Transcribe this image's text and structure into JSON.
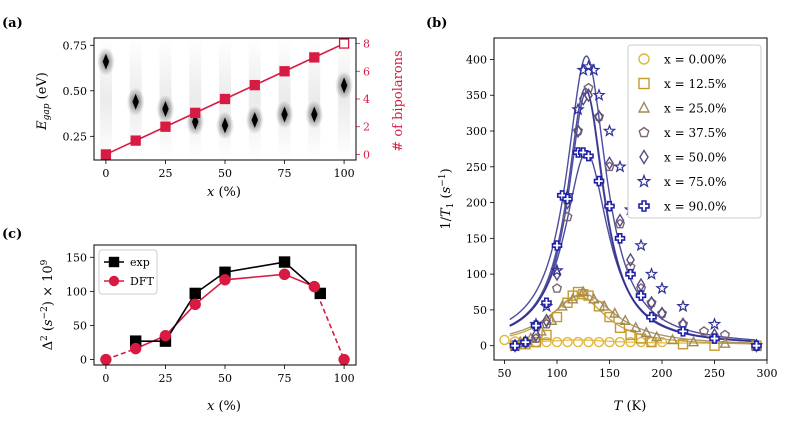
{
  "panels": {
    "a": "(a)",
    "b": "(b)",
    "c": "(c)"
  },
  "colors": {
    "red": "#d81b43",
    "black": "#000000",
    "line_b": "#2e2d8e"
  },
  "chart_data": [
    {
      "id": "a",
      "type": "scatter",
      "xlabel": "x (%)",
      "ylabel": "E_gap (eV)",
      "y2label": "# of bipolarons",
      "xlim": [
        -5,
        105
      ],
      "ylim": [
        0.12,
        0.79
      ],
      "y2lim": [
        -0.4,
        8.4
      ],
      "xticks": [
        0,
        25,
        50,
        75,
        100
      ],
      "yticks": [
        0.25,
        0.5,
        0.75
      ],
      "y2ticks": [
        0,
        2,
        4,
        6,
        8
      ],
      "gap_points": {
        "x": [
          0,
          12.5,
          25,
          37.5,
          50,
          62.5,
          75,
          87.5,
          100
        ],
        "y": [
          0.66,
          0.44,
          0.4,
          0.33,
          0.31,
          0.34,
          0.37,
          0.37,
          0.53
        ]
      },
      "bipolarons": {
        "x": [
          0,
          12.5,
          25,
          37.5,
          50,
          62.5,
          75,
          87.5,
          100
        ],
        "y": [
          0,
          1,
          2,
          3,
          4,
          5,
          6,
          7,
          8
        ]
      }
    },
    {
      "id": "b",
      "type": "scatter",
      "xlabel": "T (K)",
      "ylabel": "1/T_1 (s^-1)",
      "xlim": [
        40,
        300
      ],
      "ylim": [
        -20,
        430
      ],
      "xticks": [
        50,
        100,
        150,
        200,
        250,
        300
      ],
      "yticks": [
        0,
        50,
        100,
        150,
        200,
        250,
        300,
        350,
        400
      ],
      "legend": "top-right",
      "series": [
        {
          "name": "x = 0.00%",
          "marker": "circle",
          "color": "#e0b73a",
          "x": [
            50,
            60,
            70,
            80,
            90,
            100,
            110,
            120,
            130,
            140,
            150,
            160,
            170,
            180,
            190,
            200
          ],
          "y": [
            8,
            6,
            5,
            5,
            5,
            5,
            5,
            5,
            5,
            5,
            5,
            5,
            5,
            5,
            5,
            5
          ],
          "fit": {
            "A": 5,
            "T0": 120,
            "w": 40,
            "base": 3
          }
        },
        {
          "name": "x = 12.5%",
          "marker": "square",
          "color": "#c49a30",
          "x": [
            60,
            70,
            80,
            90,
            100,
            110,
            115,
            120,
            125,
            130,
            140,
            150,
            160,
            170,
            180,
            190,
            220,
            250,
            290
          ],
          "y": [
            0,
            2,
            5,
            15,
            40,
            60,
            70,
            75,
            72,
            70,
            55,
            40,
            25,
            15,
            10,
            5,
            2,
            0,
            0
          ],
          "fit": {
            "A": 70,
            "T0": 120,
            "w": 32,
            "base": 0
          }
        },
        {
          "name": "x = 25.0%",
          "marker": "triangle",
          "color": "#a08a5c",
          "x": [
            65,
            75,
            85,
            95,
            105,
            115,
            125,
            135,
            145,
            155,
            165,
            175,
            185,
            195,
            210,
            230,
            260,
            290
          ],
          "y": [
            5,
            10,
            20,
            35,
            55,
            65,
            75,
            65,
            55,
            45,
            35,
            25,
            18,
            12,
            8,
            5,
            3,
            0
          ],
          "fit": {
            "A": 72,
            "T0": 125,
            "w": 38,
            "base": 0
          }
        },
        {
          "name": "x = 37.5%",
          "marker": "pentagon",
          "color": "#7a6672",
          "x": [
            60,
            70,
            80,
            90,
            100,
            110,
            120,
            130,
            140,
            150,
            160,
            170,
            180,
            190,
            200,
            220,
            240,
            260,
            290
          ],
          "y": [
            0,
            5,
            10,
            30,
            80,
            180,
            300,
            360,
            320,
            250,
            170,
            110,
            80,
            60,
            45,
            30,
            20,
            15,
            0
          ],
          "fit": {
            "A": 360,
            "T0": 127,
            "w": 21,
            "base": 0
          }
        },
        {
          "name": "x = 50.0%",
          "marker": "diamond",
          "color": "#5a4d80",
          "x": [
            60,
            70,
            80,
            90,
            100,
            110,
            120,
            125,
            130,
            140,
            150,
            160,
            170,
            180,
            190,
            200,
            220,
            250,
            290
          ],
          "y": [
            0,
            5,
            15,
            35,
            100,
            200,
            300,
            345,
            350,
            320,
            255,
            175,
            120,
            85,
            60,
            45,
            30,
            15,
            0
          ],
          "fit": {
            "A": 355,
            "T0": 128,
            "w": 21,
            "base": 0
          }
        },
        {
          "name": "x = 75.0%",
          "marker": "star",
          "color": "#2e3299",
          "x": [
            60,
            70,
            80,
            90,
            100,
            110,
            120,
            125,
            130,
            135,
            140,
            150,
            160,
            170,
            180,
            190,
            200,
            220,
            250,
            290
          ],
          "y": [
            0,
            5,
            30,
            55,
            105,
            210,
            330,
            385,
            390,
            385,
            350,
            300,
            250,
            190,
            140,
            100,
            80,
            55,
            30,
            0
          ],
          "fit": {
            "A": 405,
            "T0": 128,
            "w": 23,
            "base": 0
          }
        },
        {
          "name": "x = 90.0%",
          "marker": "cross",
          "color": "#1f22a8",
          "x": [
            60,
            70,
            80,
            90,
            100,
            105,
            110,
            120,
            125,
            130,
            140,
            150,
            160,
            170,
            180,
            190,
            220,
            250,
            290
          ],
          "y": [
            0,
            5,
            28,
            60,
            140,
            210,
            205,
            270,
            270,
            265,
            230,
            195,
            150,
            100,
            70,
            40,
            20,
            10,
            0
          ],
          "fit": {
            "A": 270,
            "T0": 128,
            "w": 25,
            "base": 0
          }
        }
      ]
    },
    {
      "id": "c",
      "type": "line",
      "xlabel": "x (%)",
      "ylabel": "Δ² (s⁻²) × 10⁹",
      "xlim": [
        -5,
        105
      ],
      "ylim": [
        -8,
        168
      ],
      "xticks": [
        0,
        25,
        50,
        75,
        100
      ],
      "yticks": [
        0,
        50,
        100,
        150
      ],
      "legend": "top-left",
      "series": [
        {
          "name": "exp",
          "marker": "square",
          "color": "#000000",
          "x": [
            12.5,
            25,
            37.5,
            50,
            75,
            90
          ],
          "y": [
            27,
            27,
            97,
            128,
            143,
            97
          ]
        },
        {
          "name": "DFT",
          "marker": "circle",
          "color": "#d81b43",
          "x": [
            0,
            12.5,
            25,
            37.5,
            50,
            75,
            87.5,
            100
          ],
          "y": [
            0,
            16,
            35,
            81,
            117,
            125,
            107,
            0
          ],
          "dashed_segments": [
            [
              0,
              1
            ],
            [
              6,
              7
            ]
          ]
        }
      ]
    }
  ]
}
